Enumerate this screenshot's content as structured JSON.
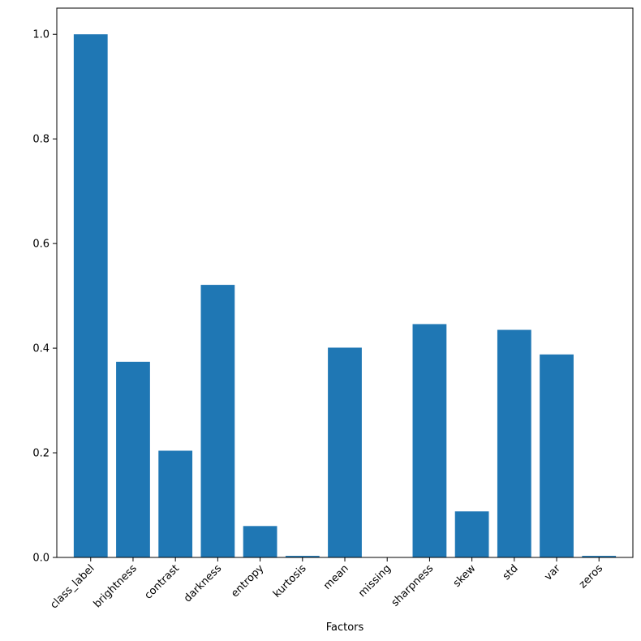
{
  "chart_data": {
    "type": "bar",
    "title": "",
    "xlabel": "Factors",
    "ylabel": "",
    "categories": [
      "class_label",
      "brightness",
      "contrast",
      "darkness",
      "entropy",
      "kurtosis",
      "mean",
      "missing",
      "sharpness",
      "skew",
      "std",
      "var",
      "zeros"
    ],
    "values": [
      1.0,
      0.374,
      0.204,
      0.521,
      0.06,
      0.003,
      0.401,
      0.0,
      0.446,
      0.088,
      0.435,
      0.388,
      0.003
    ],
    "ylim": [
      0,
      1.05
    ],
    "yticks": [
      "0.0",
      "0.2",
      "0.4",
      "0.6",
      "0.8",
      "1.0"
    ],
    "grid": false,
    "bar_color": "#1f77b4"
  }
}
